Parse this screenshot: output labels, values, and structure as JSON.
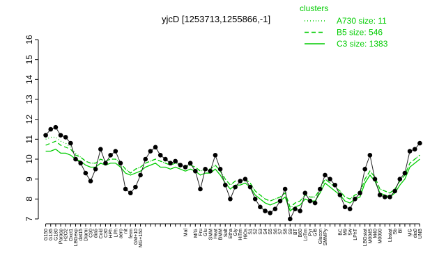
{
  "chart_data": {
    "type": "line",
    "title": "yjcD [1253713,1255866,-1]",
    "legend_title": "clusters",
    "legend_position": "top-right",
    "categories": [
      "G150",
      "G135",
      "G180",
      "Parasp",
      "H2O2",
      "Oxct1",
      "LBGexp",
      "dat15",
      "Diami",
      "C90",
      "dia5",
      "Cold",
      "C30",
      "HPh",
      "LPh",
      "aero",
      "nit",
      "ferm",
      "GM+10",
      "MG+150",
      null,
      null,
      null,
      null,
      null,
      null,
      null,
      null,
      "Mal",
      null,
      "M/G",
      "Fru",
      "Glu",
      "SMM",
      "Heat",
      "BMM",
      "Salt",
      "Etha",
      "Gly",
      "HiTm",
      "HiOs",
      "S1",
      "S2",
      "S3",
      "S4",
      "S5",
      "S6",
      "S7",
      "S8",
      "S9",
      "BT",
      "B60",
      "LoTm",
      "Pyr",
      "Gl6",
      "Glucon",
      "SMMPy",
      null,
      null,
      "BC",
      "M9",
      "Sw",
      "LPhT",
      null,
      "LBGstat",
      "M0045",
      "M40",
      "M0090",
      null,
      "Lbstat",
      "Sb",
      "Bl",
      null,
      "MG",
      "dia0",
      "UNB"
    ],
    "values": [
      11.2,
      11.5,
      11.6,
      11.2,
      11.1,
      10.8,
      10.0,
      9.8,
      9.3,
      8.9,
      9.5,
      10.5,
      9.8,
      10.2,
      10.4,
      9.8,
      8.5,
      8.3,
      8.6,
      9.2,
      10.0,
      10.4,
      10.6,
      10.2,
      10.0,
      9.8,
      9.9,
      9.7,
      9.6,
      9.8,
      9.4,
      8.5,
      9.5,
      9.4,
      10.2,
      9.5,
      8.7,
      8.0,
      8.6,
      8.9,
      9.0,
      8.6,
      8.0,
      7.6,
      7.4,
      7.3,
      7.5,
      7.9,
      8.5,
      7.0,
      7.5,
      7.4,
      8.3,
      7.9,
      7.8,
      8.5,
      9.2,
      9.0,
      8.7,
      8.2,
      7.6,
      7.5,
      8.0,
      8.3,
      9.5,
      10.2,
      9.0,
      8.2,
      8.1,
      8.1,
      8.4,
      9.0,
      9.3,
      10.4,
      10.5,
      10.8
    ],
    "color": "#000000",
    "series": [
      {
        "name": "A730 size: 11",
        "color": "#00cc00",
        "dash": "dotted",
        "values": [
          11.0,
          11.1,
          11.1,
          10.9,
          10.8,
          10.6,
          10.3,
          10.1,
          9.9,
          9.8,
          9.8,
          10.0,
          9.9,
          10.0,
          10.0,
          9.8,
          9.5,
          9.3,
          9.5,
          9.6,
          9.8,
          9.9,
          10.0,
          9.9,
          9.8,
          9.7,
          9.8,
          9.7,
          9.6,
          9.7,
          9.6,
          9.4,
          9.5,
          9.5,
          9.7,
          9.4,
          9.0,
          8.7,
          8.9,
          8.9,
          9.0,
          8.8,
          8.4,
          8.2,
          8.0,
          7.9,
          8.0,
          8.1,
          8.3,
          7.5,
          7.8,
          7.9,
          8.2,
          8.1,
          8.1,
          8.5,
          9.0,
          8.8,
          8.6,
          8.4,
          8.1,
          8.0,
          8.2,
          8.3,
          9.0,
          9.4,
          9.1,
          8.5,
          8.4,
          8.3,
          8.5,
          8.9,
          9.2,
          9.8,
          10.0,
          10.2
        ]
      },
      {
        "name": "B5 size: 546",
        "color": "#00cc00",
        "dash": "dashed",
        "values": [
          10.7,
          10.8,
          10.9,
          10.7,
          10.6,
          10.5,
          10.2,
          10.1,
          9.9,
          9.8,
          9.8,
          10.0,
          9.9,
          10.0,
          10.0,
          9.8,
          9.5,
          9.3,
          9.5,
          9.6,
          9.8,
          9.9,
          10.0,
          9.9,
          9.8,
          9.7,
          9.8,
          9.7,
          9.6,
          9.7,
          9.6,
          9.4,
          9.5,
          9.5,
          9.7,
          9.4,
          9.0,
          8.7,
          8.9,
          8.9,
          9.0,
          8.8,
          8.4,
          8.2,
          8.0,
          7.9,
          8.0,
          8.1,
          8.3,
          7.6,
          7.8,
          7.9,
          8.2,
          8.1,
          8.1,
          8.5,
          9.0,
          8.8,
          8.6,
          8.4,
          8.1,
          8.0,
          8.2,
          8.3,
          9.0,
          9.4,
          9.1,
          8.5,
          8.4,
          8.3,
          8.5,
          8.9,
          9.2,
          9.8,
          10.0,
          10.2
        ]
      },
      {
        "name": "C3 size: 1383",
        "color": "#00cc00",
        "dash": "solid",
        "values": [
          10.4,
          10.4,
          10.5,
          10.3,
          10.3,
          10.2,
          10.0,
          9.9,
          9.7,
          9.6,
          9.6,
          9.8,
          9.7,
          9.8,
          9.8,
          9.6,
          9.3,
          9.2,
          9.3,
          9.4,
          9.6,
          9.7,
          9.8,
          9.6,
          9.6,
          9.5,
          9.6,
          9.5,
          9.4,
          9.5,
          9.4,
          9.2,
          9.3,
          9.3,
          9.5,
          9.2,
          8.8,
          8.5,
          8.7,
          8.7,
          8.8,
          8.6,
          8.2,
          8.0,
          7.8,
          7.7,
          7.8,
          7.9,
          8.1,
          7.4,
          7.6,
          7.7,
          8.0,
          7.9,
          7.9,
          8.3,
          8.8,
          8.6,
          8.4,
          8.2,
          7.9,
          7.8,
          8.0,
          8.1,
          8.8,
          9.2,
          8.9,
          8.3,
          8.2,
          8.1,
          8.3,
          8.7,
          9.0,
          9.6,
          9.8,
          10.0
        ]
      }
    ],
    "ylim": [
      7,
      16
    ],
    "yticks": [
      7,
      8,
      9,
      10,
      11,
      12,
      13,
      14,
      15,
      16
    ]
  }
}
